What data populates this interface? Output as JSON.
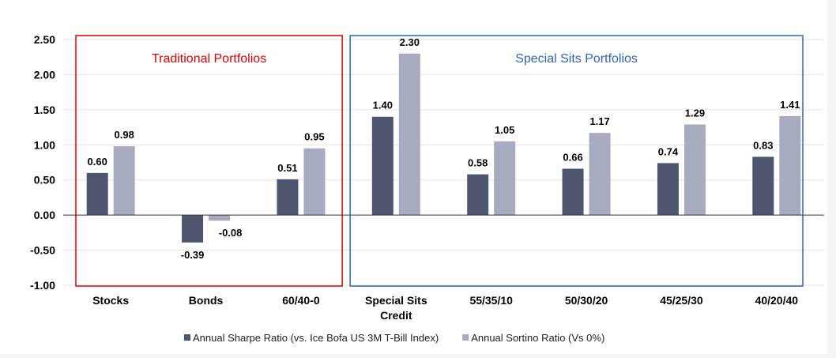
{
  "chart_data": {
    "type": "bar",
    "categories": [
      "Stocks",
      "Bonds",
      "60/40-0",
      "Special Sits Credit",
      "55/35/10",
      "50/30/20",
      "45/25/30",
      "40/20/40"
    ],
    "category_lines": [
      [
        "Stocks"
      ],
      [
        "Bonds"
      ],
      [
        "60/40-0"
      ],
      [
        "Special Sits",
        "Credit"
      ],
      [
        "55/35/10"
      ],
      [
        "50/30/20"
      ],
      [
        "45/25/30"
      ],
      [
        "40/20/40"
      ]
    ],
    "series": [
      {
        "name": "Annual Sharpe Ratio (vs. Ice Bofa US 3M T-Bill Index)",
        "color": "#4d566e",
        "values": [
          0.6,
          -0.39,
          0.51,
          1.4,
          0.58,
          0.66,
          0.74,
          0.83
        ],
        "labels": [
          "0.60",
          "-0.39",
          "0.51",
          "1.40",
          "0.58",
          "0.66",
          "0.74",
          "0.83"
        ]
      },
      {
        "name": "Annual Sortino Ratio (Vs 0%)",
        "color": "#a6abbf",
        "values": [
          0.98,
          -0.08,
          0.95,
          2.3,
          1.05,
          1.17,
          1.29,
          1.41
        ],
        "labels": [
          "0.98",
          "-0.08",
          "0.95",
          "2.30",
          "1.05",
          "1.17",
          "1.29",
          "1.41"
        ]
      }
    ],
    "ylim": [
      -1.0,
      2.5
    ],
    "yticks": [
      "2.50",
      "2.00",
      "1.50",
      "1.00",
      "0.50",
      "0.00",
      "-0.50",
      "-1.00"
    ],
    "ytick_values": [
      2.5,
      2.0,
      1.5,
      1.0,
      0.5,
      0.0,
      -0.5,
      -1.0
    ],
    "grid": true,
    "legend_position": "bottom",
    "groups": [
      {
        "title": "Traditional Portfolios",
        "color": "#e00000",
        "from": 0,
        "to": 2
      },
      {
        "title": "Special Sits Portfolios",
        "color": "#2f64b5",
        "from": 3,
        "to": 7
      }
    ]
  }
}
